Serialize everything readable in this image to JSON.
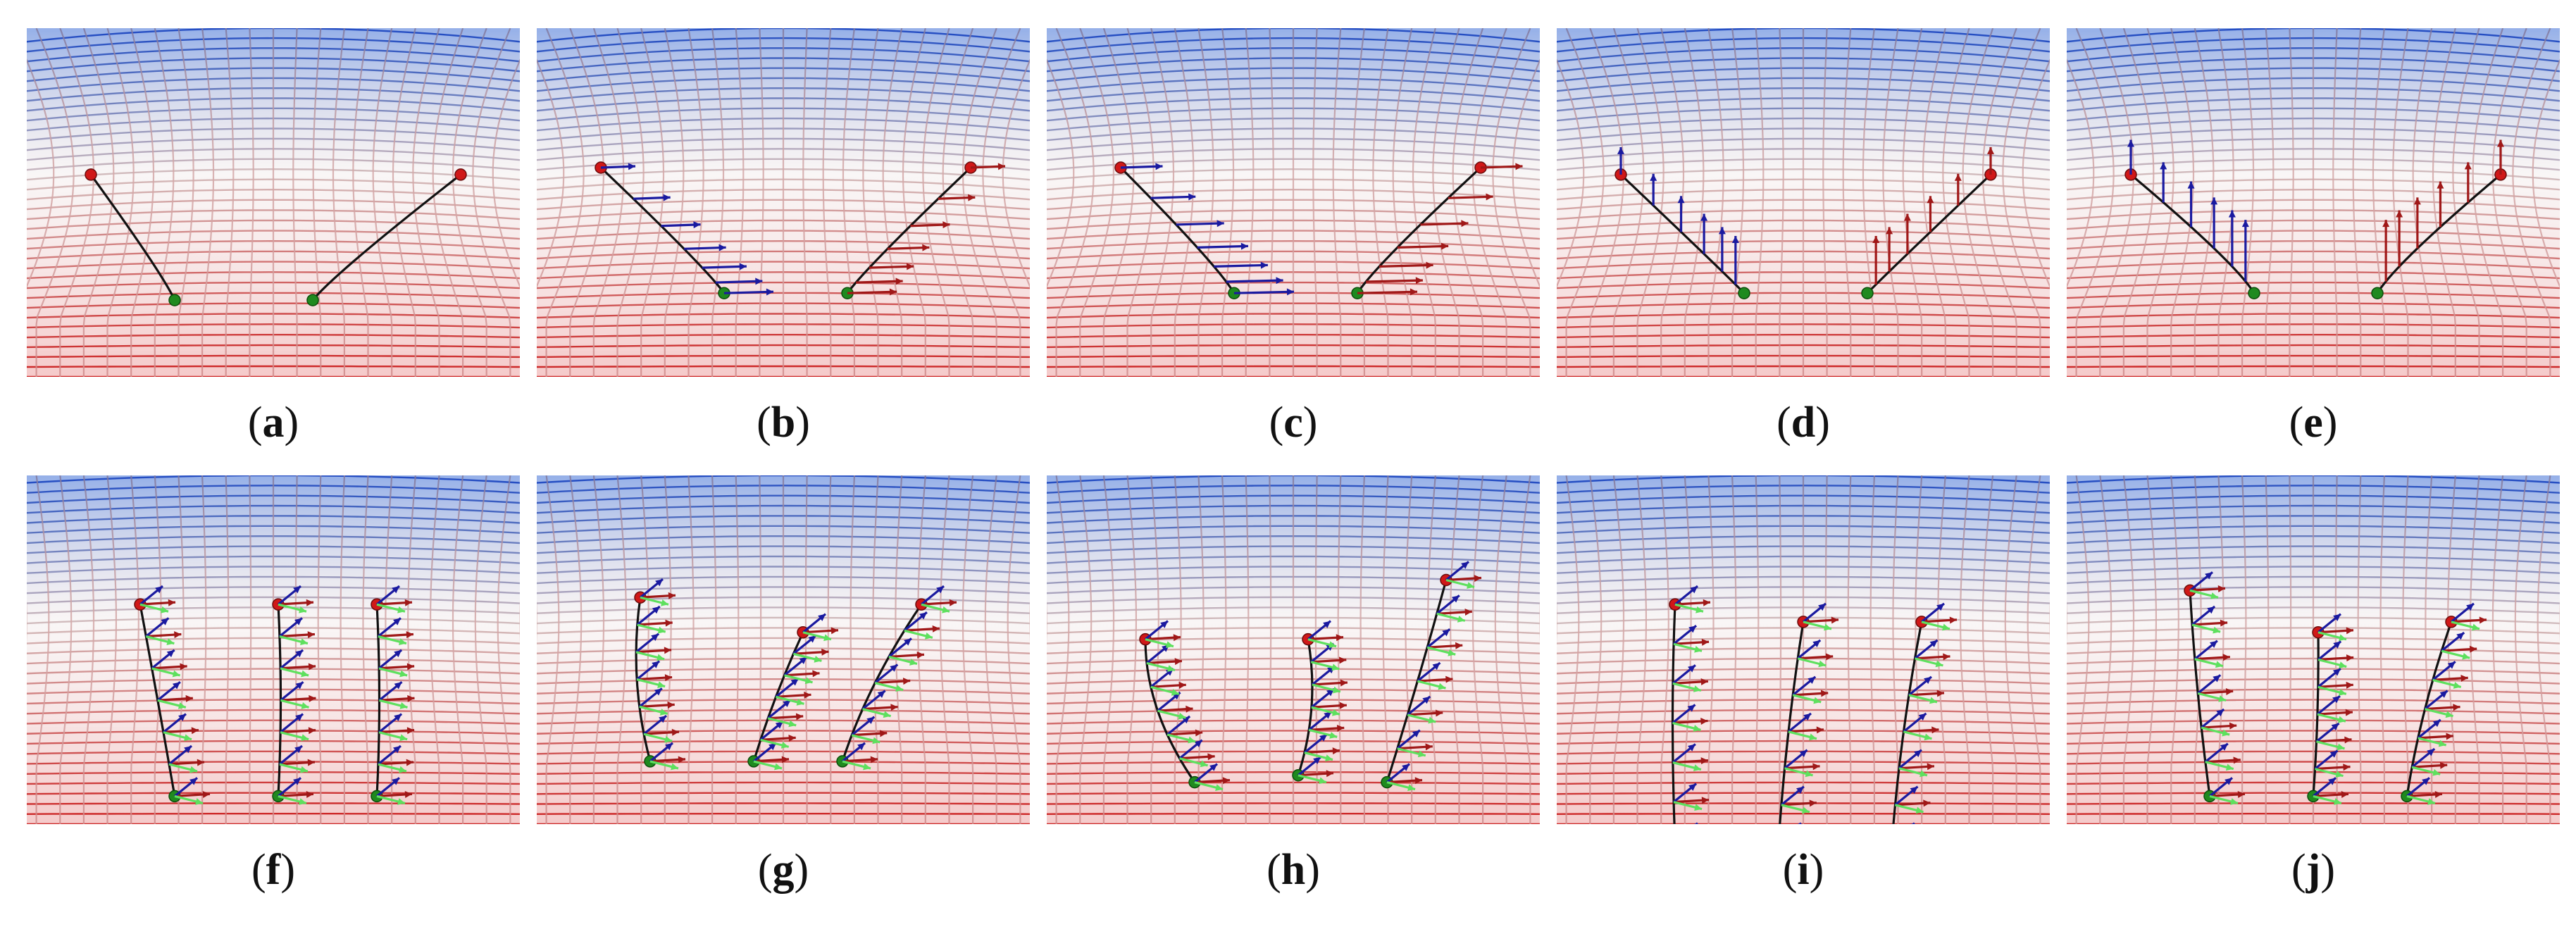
{
  "figure": {
    "panels": [
      {
        "id": "a",
        "label": "a",
        "row": 0,
        "mode": "bend2d",
        "roots": [
          [
            0.3,
            0.78
          ],
          [
            0.58,
            0.78
          ]
        ],
        "tips": [
          [
            0.13,
            0.42
          ],
          [
            0.88,
            0.42
          ]
        ],
        "sag": 0.12,
        "arrows": "none"
      },
      {
        "id": "b",
        "label": "b",
        "row": 0,
        "mode": "bend2d",
        "roots": [
          [
            0.38,
            0.76
          ],
          [
            0.63,
            0.76
          ]
        ],
        "tips": [
          [
            0.13,
            0.4
          ],
          [
            0.88,
            0.4
          ]
        ],
        "sag": 0.1,
        "arrows": "horizontal"
      },
      {
        "id": "c",
        "label": "c",
        "row": 0,
        "mode": "bend2d",
        "roots": [
          [
            0.38,
            0.76
          ],
          [
            0.63,
            0.76
          ]
        ],
        "tips": [
          [
            0.15,
            0.4
          ],
          [
            0.88,
            0.4
          ]
        ],
        "sag": 0.14,
        "arrows": "horizontal-long"
      },
      {
        "id": "d",
        "label": "d",
        "row": 0,
        "mode": "bend2d",
        "roots": [
          [
            0.38,
            0.76
          ],
          [
            0.63,
            0.76
          ]
        ],
        "tips": [
          [
            0.13,
            0.42
          ],
          [
            0.88,
            0.42
          ]
        ],
        "sag": 0.02,
        "arrows": "vertical"
      },
      {
        "id": "e",
        "label": "e",
        "row": 0,
        "mode": "bend2d",
        "roots": [
          [
            0.38,
            0.76
          ],
          [
            0.63,
            0.76
          ]
        ],
        "tips": [
          [
            0.13,
            0.42
          ],
          [
            0.88,
            0.42
          ]
        ],
        "sag": 0.18,
        "arrows": "vertical-long"
      },
      {
        "id": "f",
        "label": "f",
        "row": 1,
        "mode": "rods3",
        "roots": [
          [
            0.3,
            0.92
          ],
          [
            0.51,
            0.92
          ],
          [
            0.71,
            0.92
          ]
        ],
        "tips": [
          [
            0.23,
            0.37
          ],
          [
            0.51,
            0.37
          ],
          [
            0.71,
            0.37
          ]
        ],
        "sag": 0.02,
        "arrows": "frames"
      },
      {
        "id": "g",
        "label": "g",
        "row": 1,
        "mode": "rods3",
        "roots": [
          [
            0.23,
            0.82
          ],
          [
            0.44,
            0.82
          ],
          [
            0.62,
            0.82
          ]
        ],
        "tips": [
          [
            0.21,
            0.35
          ],
          [
            0.54,
            0.45
          ],
          [
            0.78,
            0.37
          ]
        ],
        "sag": 0.04,
        "arrows": "frames"
      },
      {
        "id": "h",
        "label": "h",
        "row": 1,
        "mode": "rods3",
        "roots": [
          [
            0.3,
            0.88
          ],
          [
            0.51,
            0.86
          ],
          [
            0.69,
            0.88
          ]
        ],
        "tips": [
          [
            0.2,
            0.47
          ],
          [
            0.53,
            0.47
          ],
          [
            0.81,
            0.3
          ]
        ],
        "sag": 0.08,
        "arrows": "frames"
      },
      {
        "id": "i",
        "label": "i",
        "row": 1,
        "mode": "rods3",
        "roots": [
          [
            0.24,
            1.05
          ],
          [
            0.45,
            1.05
          ],
          [
            0.68,
            1.05
          ]
        ],
        "tips": [
          [
            0.24,
            0.37
          ],
          [
            0.5,
            0.42
          ],
          [
            0.74,
            0.42
          ]
        ],
        "sag": 0.01,
        "arrows": "frames"
      },
      {
        "id": "j",
        "label": "j",
        "row": 1,
        "mode": "rods3",
        "roots": [
          [
            0.29,
            0.92
          ],
          [
            0.5,
            0.92
          ],
          [
            0.69,
            0.92
          ]
        ],
        "tips": [
          [
            0.25,
            0.33
          ],
          [
            0.51,
            0.45
          ],
          [
            0.78,
            0.42
          ]
        ],
        "sag": 0.02,
        "arrows": "frames"
      }
    ],
    "colors": {
      "grid_top": "#3e6fd6",
      "grid_mid": "#d9c4c4",
      "grid_bottom": "#d62a2a",
      "rod": "#111111",
      "root_point": "#1f8a1f",
      "tip_point": "#d01818",
      "arrow_blue": "#1a1aa0",
      "arrow_red": "#a01818",
      "arrow_green": "#5ee05e"
    }
  }
}
